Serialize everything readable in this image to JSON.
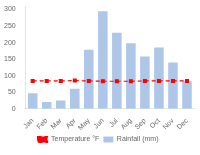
{
  "chart_data": {
    "type": "bar",
    "categories": [
      "Jan",
      "Feb",
      "Mar",
      "Apr",
      "May",
      "Jun",
      "Jul",
      "Aug",
      "Sep",
      "Oct",
      "Nov",
      "Dec"
    ],
    "series": [
      {
        "name": "Temperature °F",
        "type": "line",
        "color": "#ff0000",
        "marker": "square",
        "line_style": "dashed",
        "values": [
          84,
          84,
          84,
          85,
          84,
          83,
          83,
          83,
          84,
          84,
          84,
          84
        ]
      },
      {
        "name": "Rainfall (mm)",
        "type": "bar",
        "color": "#aec6e8",
        "values": [
          47,
          20,
          25,
          60,
          178,
          295,
          230,
          198,
          158,
          185,
          140,
          83
        ]
      }
    ],
    "ylim": [
      0,
      310
    ],
    "yticks": [
      0,
      50,
      100,
      150,
      200,
      250,
      300
    ],
    "grid": false,
    "legend": "bottom"
  }
}
